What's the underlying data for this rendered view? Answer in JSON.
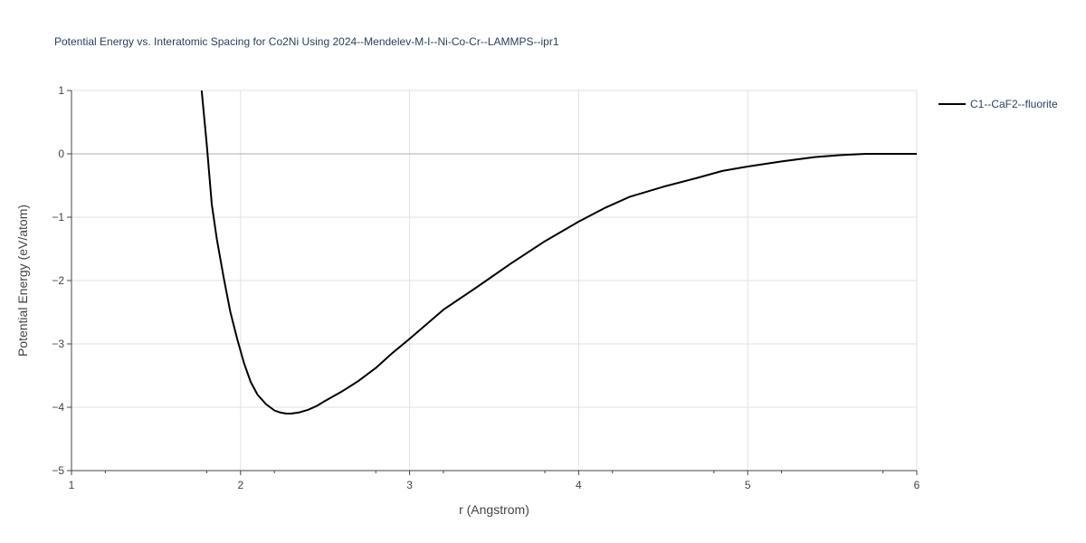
{
  "chart_data": {
    "type": "line",
    "title": "Potential Energy vs. Interatomic Spacing for Co2Ni Using 2024--Mendelev-M-I--Ni-Co-Cr--LAMMPS--ipr1",
    "xlabel": "r (Angstrom)",
    "ylabel": "Potential Energy (eV/atom)",
    "xlim": [
      1,
      6
    ],
    "ylim": [
      -5,
      1
    ],
    "xticks": [
      1,
      2,
      3,
      4,
      5,
      6
    ],
    "xtick_labels": [
      "1",
      "2",
      "3",
      "4",
      "5",
      "6"
    ],
    "yticks": [
      1,
      0,
      -1,
      -2,
      -3,
      -4,
      -5
    ],
    "ytick_labels": [
      "1",
      "0",
      "−1",
      "−2",
      "−3",
      "−4",
      "−5"
    ],
    "grid": true,
    "legend_position": "top-right",
    "series": [
      {
        "name": "C1--CaF2--fluorite",
        "color": "#000000",
        "x": [
          1.77,
          1.8,
          1.83,
          1.86,
          1.9,
          1.94,
          1.98,
          2.02,
          2.06,
          2.1,
          2.15,
          2.2,
          2.23,
          2.27,
          2.3,
          2.35,
          2.4,
          2.45,
          2.5,
          2.6,
          2.7,
          2.8,
          2.9,
          3.0,
          3.2,
          3.4,
          3.6,
          3.8,
          4.0,
          4.15,
          4.3,
          4.5,
          4.7,
          4.85,
          5.0,
          5.2,
          5.4,
          5.55,
          5.7,
          5.85,
          6.0
        ],
        "y": [
          1.0,
          0.15,
          -0.8,
          -1.35,
          -1.95,
          -2.5,
          -2.92,
          -3.3,
          -3.6,
          -3.8,
          -3.95,
          -4.05,
          -4.08,
          -4.1,
          -4.1,
          -4.08,
          -4.04,
          -3.98,
          -3.9,
          -3.75,
          -3.58,
          -3.38,
          -3.14,
          -2.92,
          -2.46,
          -2.1,
          -1.73,
          -1.38,
          -1.07,
          -0.86,
          -0.68,
          -0.52,
          -0.38,
          -0.27,
          -0.2,
          -0.12,
          -0.05,
          -0.02,
          0.0,
          0.0,
          0.0
        ]
      }
    ]
  }
}
